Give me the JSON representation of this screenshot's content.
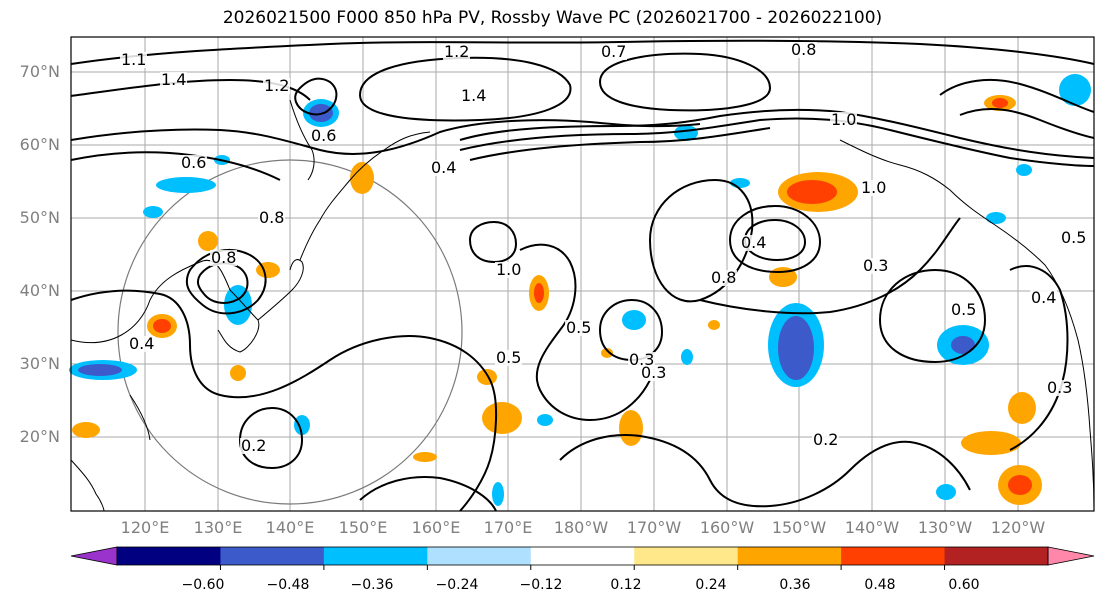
{
  "title": "2026021500 F000 850 hPa PV, Rossby Wave PC (2026021700 - 2026022100)",
  "lat_labels": [
    "70°N",
    "60°N",
    "50°N",
    "40°N",
    "30°N",
    "20°N"
  ],
  "lon_labels": [
    "120°E",
    "130°E",
    "140°E",
    "150°E",
    "160°E",
    "170°E",
    "180°W",
    "170°W",
    "160°W",
    "150°W",
    "140°W",
    "130°W",
    "120°W"
  ],
  "colorbar": {
    "tick_labels": [
      "−0.60",
      "−0.48",
      "−0.36",
      "−0.24",
      "−0.12",
      "0.12",
      "0.24",
      "0.36",
      "0.48",
      "0.60"
    ],
    "colors": [
      "#9933cc",
      "#000080",
      "#3d5acb",
      "#00bfff",
      "#b0e0ff",
      "#ffffff",
      "#ffe88a",
      "#ffa500",
      "#ff4000",
      "#b22222",
      "#ff88aa"
    ]
  },
  "contour_labels": [
    "1.2",
    "0.7",
    "0.8",
    "1.1",
    "1.4",
    "1.0",
    "1.2",
    "1.4",
    "0.6",
    "0.4",
    "0.8",
    "1.0",
    "0.8",
    "1.0",
    "0.4",
    "0.5",
    "0.3",
    "0.2",
    "0.4",
    "0.6",
    "0.5",
    "0.3",
    "0.5",
    "0.2",
    "0.4",
    "0.3",
    "0.8",
    "0.3",
    "0.5"
  ],
  "map_features": {
    "blue_anomalies": [
      "western-pacific",
      "kamchatka",
      "north-pacific-east",
      "subtropical-central"
    ],
    "orange_anomalies": [
      "gulf-of-alaska",
      "east-asia",
      "subtropical-east",
      "alaska-coast"
    ]
  }
}
